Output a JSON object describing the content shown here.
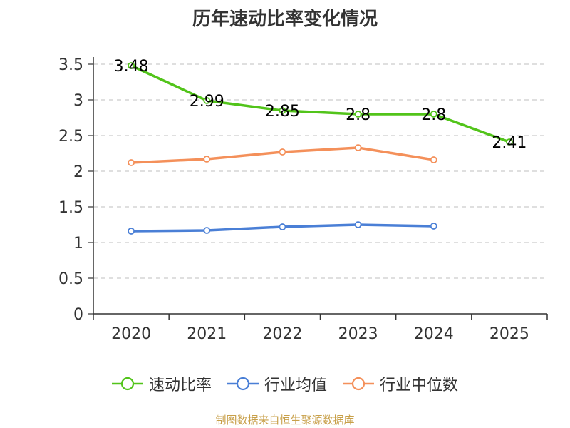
{
  "title": "历年速动比率变化情况",
  "source": "制图数据来自恒生聚源数据库",
  "chart_data": {
    "type": "line",
    "title": "历年速动比率变化情况",
    "categories": [
      "2020",
      "2021",
      "2022",
      "2023",
      "2024",
      "2025"
    ],
    "ylim": [
      0,
      3.5
    ],
    "yticks": [
      "0",
      "0.5",
      "1",
      "1.5",
      "2",
      "2.5",
      "3",
      "3.5"
    ],
    "grid": true,
    "legend_position": "bottom",
    "series": [
      {
        "name": "速动比率",
        "color": "#52c41a",
        "values": [
          3.48,
          2.99,
          2.85,
          2.8,
          2.8,
          2.41
        ],
        "labels": [
          "3.48",
          "2.99",
          "2.85",
          "2.8",
          "2.8",
          "2.41"
        ],
        "show_labels": true
      },
      {
        "name": "行业均值",
        "color": "#4a7fd6",
        "values": [
          1.16,
          1.17,
          1.22,
          1.25,
          1.23,
          null
        ],
        "show_labels": false
      },
      {
        "name": "行业中位数",
        "color": "#f4905a",
        "values": [
          2.12,
          2.17,
          2.27,
          2.33,
          2.16,
          null
        ],
        "show_labels": false
      }
    ]
  }
}
